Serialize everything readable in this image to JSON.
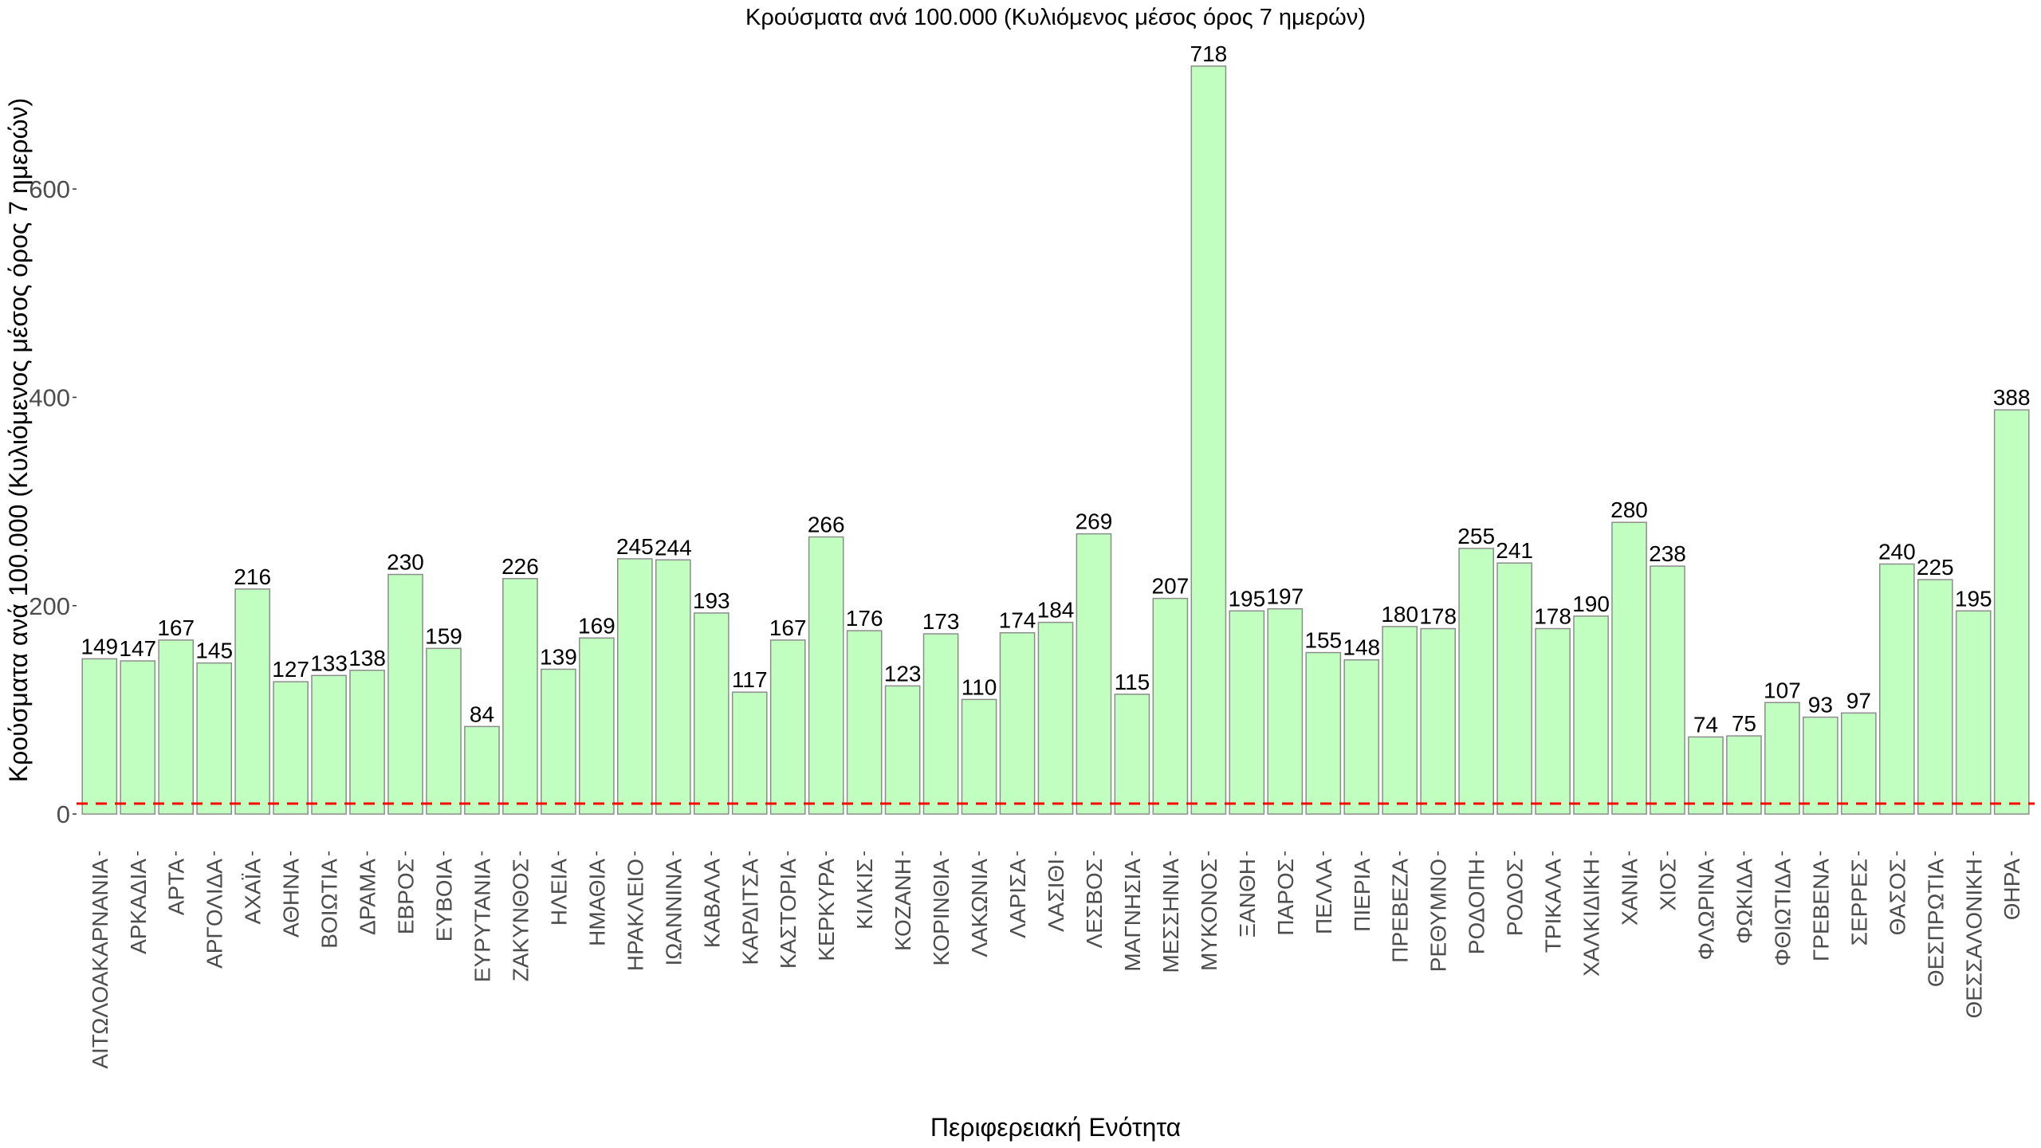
{
  "chart_data": {
    "type": "bar",
    "title": "Κρούσματα ανά 100.000 (Κυλιόμενος μέσος όρος 7 ημερών)",
    "xlabel": "Περιφερειακή Ενότητα",
    "ylabel": "Κρούσματα ανά 100.000 (Κυλιόμενος μέσος όρος 7 ημερών)",
    "ylim": [
      -35.9,
      753.9
    ],
    "yticks": [
      0,
      200,
      400,
      600
    ],
    "grid": false,
    "reference_line": {
      "value": 10,
      "color": "#ff0000"
    },
    "bar_fill": "#c1ffc1",
    "bar_stroke": "#8c8c8c",
    "categories": [
      "ΑΙΤΩΛΟΑΚΑΡΝΑΝΙΑ",
      "ΑΡΚΑΔΙΑ",
      "ΑΡΤΑ",
      "ΑΡΓΟΛΙΔΑ",
      "ΑΧΑΪΑ",
      "ΑΘΗΝΑ",
      "ΒΟΙΩΤΙΑ",
      "ΔΡΑΜΑ",
      "ΕΒΡΟΣ",
      "ΕΥΒΟΙΑ",
      "ΕΥΡΥΤΑΝΙΑ",
      "ΖΑΚΥΝΘΟΣ",
      "ΗΛΕΙΑ",
      "ΗΜΑΘΙΑ",
      "ΗΡΑΚΛΕΙΟ",
      "ΙΩΑΝΝΙΝΑ",
      "ΚΑΒΑΛΑ",
      "ΚΑΡΔΙΤΣΑ",
      "ΚΑΣΤΟΡΙΑ",
      "ΚΕΡΚΥΡΑ",
      "ΚΙΛΚΙΣ",
      "ΚΟΖΑΝΗ",
      "ΚΟΡΙΝΘΙΑ",
      "ΛΑΚΩΝΙΑ",
      "ΛΑΡΙΣΑ",
      "ΛΑΣΙΘΙ",
      "ΛΕΣΒΟΣ",
      "ΜΑΓΝΗΣΙΑ",
      "ΜΕΣΣΗΝΙΑ",
      "ΜΥΚΟΝΟΣ",
      "ΞΑΝΘΗ",
      "ΠΑΡΟΣ",
      "ΠΕΛΛΑ",
      "ΠΙΕΡΙΑ",
      "ΠΡΕΒΕΖΑ",
      "ΡΕΘΥΜΝΟ",
      "ΡΟΔΟΠΗ",
      "ΡΟΔΟΣ",
      "ΤΡΙΚΑΛΑ",
      "ΧΑΛΚΙΔΙΚΗ",
      "ΧΑΝΙΑ",
      "ΧΙΟΣ",
      "ΦΛΩΡΙΝΑ",
      "ΦΩΚΙΔΑ",
      "ΦΘΙΩΤΙΔΑ",
      "ΓΡΕΒΕΝΑ",
      "ΣΕΡΡΕΣ",
      "ΘΑΣΟΣ",
      "ΘΕΣΠΡΩΤΙΑ",
      "ΘΕΣΣΑΛΟΝΙΚΗ",
      "ΘΗΡΑ"
    ],
    "values": [
      149,
      147,
      167,
      145,
      216,
      127,
      133,
      138,
      230,
      159,
      84,
      226,
      139,
      169,
      245,
      244,
      193,
      117,
      167,
      266,
      176,
      123,
      173,
      110,
      174,
      184,
      269,
      115,
      207,
      718,
      195,
      197,
      155,
      148,
      180,
      178,
      255,
      241,
      178,
      190,
      280,
      238,
      74,
      75,
      107,
      93,
      97,
      240,
      225,
      195,
      388
    ]
  }
}
